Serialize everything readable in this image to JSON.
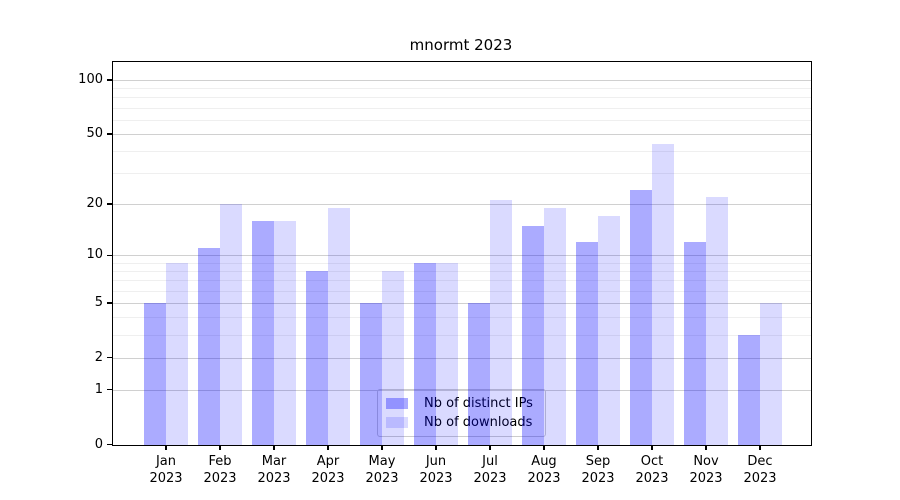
{
  "title": "mnormt 2023",
  "chart_data": {
    "type": "bar",
    "title": "mnormt 2023",
    "categories": [
      "Jan",
      "Feb",
      "Mar",
      "Apr",
      "May",
      "Jun",
      "Jul",
      "Aug",
      "Sep",
      "Oct",
      "Nov",
      "Dec"
    ],
    "category_year": "2023",
    "series": [
      {
        "name": "Nb of distinct IPs",
        "color": "rgba(0,0,255,0.33)",
        "values": [
          5,
          11,
          16,
          8,
          5,
          9,
          5,
          15,
          12,
          24,
          12,
          3
        ]
      },
      {
        "name": "Nb of downloads",
        "color": "rgba(0,0,255,0.145)",
        "values": [
          9,
          20,
          16,
          19,
          8,
          9,
          21,
          19,
          17,
          44,
          22,
          5
        ]
      }
    ],
    "xlabel": "",
    "ylabel": "",
    "y_axis": {
      "scale": "log1p",
      "ticks": [
        100,
        50,
        20,
        10,
        5,
        2,
        1,
        0
      ],
      "minor_ticks": [
        90,
        80,
        70,
        60,
        40,
        30,
        9,
        8,
        7,
        6,
        4,
        3
      ],
      "range": [
        0,
        127
      ]
    },
    "grid": true,
    "legend_position": "lower center"
  },
  "colors": {
    "axis": "#000000",
    "grid_major": "#d0d0d0",
    "grid_minor": "#efefef",
    "background": "#ffffff",
    "legend_border": "#cccccc",
    "bar_ips": "rgba(0,0,255,0.33)",
    "bar_downloads": "rgba(0,0,255,0.145)"
  }
}
